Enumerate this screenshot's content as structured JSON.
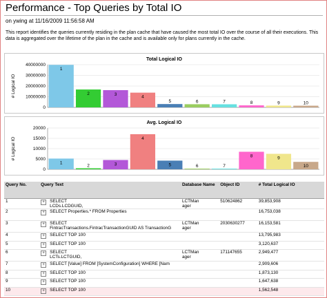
{
  "report": {
    "title": "Performance - Top Queries by Total IO",
    "meta": "on ywing at 11/16/2009 11:56:58 AM",
    "description": "This report identifies the queries currently residing in the plan cache that have caused the most total IO over the course of all their executions. This data is aggregated over the lifetime of the plan in the cache and is available only for plans currently in the cache."
  },
  "colors": [
    "#7ec8e8",
    "#33cc33",
    "#b358d8",
    "#f08080",
    "#4a7fb5",
    "#9acd60",
    "#66e0e0",
    "#ff66cc",
    "#f0e68c",
    "#c8a88a"
  ],
  "chart_data": [
    {
      "type": "bar",
      "title": "Total Logical IO",
      "ylabel": "# Logical IO",
      "ylim": [
        0,
        40000000
      ],
      "yticks": [
        0,
        10000000,
        20000000,
        30000000,
        40000000
      ],
      "tick_labels": [
        "0",
        "10000000",
        "20000000",
        "30000000",
        "40000000"
      ],
      "categories": [
        "1",
        "2",
        "3",
        "4",
        "5",
        "6",
        "7",
        "8",
        "9",
        "10"
      ],
      "values": [
        39853908,
        16753038,
        16153581,
        13795983,
        3120637,
        2949477,
        2909606,
        1873130,
        1647638,
        1562548
      ]
    },
    {
      "type": "bar",
      "title": "Avg. Logical IO",
      "ylabel": "# Logical IO",
      "ylim": [
        0,
        20000
      ],
      "yticks": [
        0,
        5000,
        10000,
        15000,
        20000
      ],
      "tick_labels": [
        "0",
        "5000",
        "10000",
        "15000",
        "20000"
      ],
      "categories": [
        "1",
        "2",
        "3",
        "4",
        "5",
        "6",
        "7",
        "8",
        "9",
        "10"
      ],
      "values": [
        5200,
        500,
        4500,
        17000,
        4200,
        300,
        200,
        8500,
        7500,
        3600
      ]
    }
  ],
  "table": {
    "headers": [
      "Query No.",
      "Query Text",
      "Database Name",
      "Object ID",
      "# Total Logical IO"
    ],
    "rows": [
      {
        "no": "1",
        "text": "SELECT\nLCDs.LCDGUID,",
        "db": "LCTMan\nager",
        "obj": "510624862",
        "io": "39,853,908"
      },
      {
        "no": "2",
        "text": "SELECT Properties.* FROM Properties",
        "db": "",
        "obj": "",
        "io": "16,753,038"
      },
      {
        "no": "3",
        "text": "SELECT\nFintracTransactions.FintracTransactionGUID AS TransactionG",
        "db": "LCTMan\nager",
        "obj": "2030630277",
        "io": "16,153,581"
      },
      {
        "no": "4",
        "text": "SELECT TOP 100",
        "db": "",
        "obj": "",
        "io": "13,795,983"
      },
      {
        "no": "5",
        "text": "SELECT TOP 100",
        "db": "",
        "obj": "",
        "io": "3,120,637"
      },
      {
        "no": "6",
        "text": "SELECT\nLCTs.LCTGUID,",
        "db": "LCTMan\nager",
        "obj": "171147655",
        "io": "2,949,477"
      },
      {
        "no": "7",
        "text": "SELECT [Value] FROM [SystemConfiguration] WHERE [Nam",
        "db": "",
        "obj": "",
        "io": "2,909,606"
      },
      {
        "no": "8",
        "text": "SELECT TOP 100",
        "db": "",
        "obj": "",
        "io": "1,873,130"
      },
      {
        "no": "9",
        "text": "SELECT TOP 100",
        "db": "",
        "obj": "",
        "io": "1,647,638"
      },
      {
        "no": "10",
        "text": "SELECT TOP 100",
        "db": "",
        "obj": "",
        "io": "1,562,548"
      }
    ],
    "highlight_row": "10",
    "expand_glyph": "+"
  }
}
